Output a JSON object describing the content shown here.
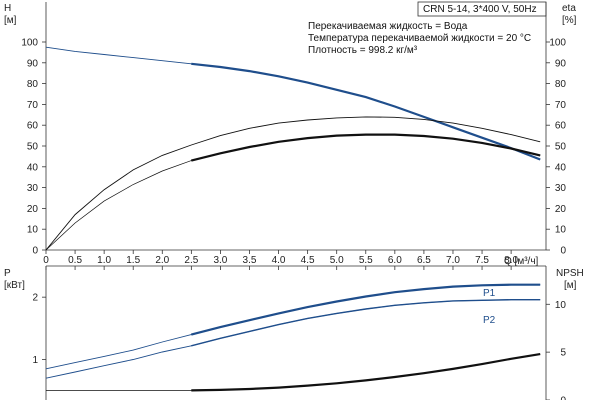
{
  "chart_data": [
    {
      "type": "line",
      "header_box": "CRN 5-14, 3*400 V, 50Hz",
      "info_lines": [
        "Перекачиваемая жидкость = Вода",
        "Температура перекачиваемой жидкости = 20 °C",
        "Плотность = 998.2 кг/м³"
      ],
      "y_label_left": {
        "name": "H",
        "unit": "[м]"
      },
      "y_label_right": {
        "name": "eta",
        "unit": "[%]"
      },
      "x_label": "Q [м³/ч]",
      "x_ticks": [
        "0",
        "0.5",
        "1.0",
        "1.5",
        "2.0",
        "2.5",
        "3.0",
        "3.5",
        "4.0",
        "4.5",
        "5.0",
        "5.5",
        "6.0",
        "6.5",
        "7.0",
        "7.5",
        "8.0"
      ],
      "y_ticks_left": [
        "0",
        "10",
        "20",
        "30",
        "40",
        "50",
        "60",
        "70",
        "80",
        "90",
        "100"
      ],
      "y_ticks_right": [
        "0",
        "10",
        "20",
        "30",
        "40",
        "50",
        "60",
        "70",
        "80",
        "90",
        "100"
      ],
      "xlim": [
        0,
        8.6
      ],
      "ylim": [
        0,
        100
      ],
      "grid": false,
      "series": [
        {
          "role": "head",
          "color": "#1f4e8c",
          "points": [
            [
              0,
              97.5
            ],
            [
              0.5,
              95.5
            ],
            [
              1.0,
              94.0
            ],
            [
              1.5,
              92.5
            ],
            [
              2.0,
              91.0
            ],
            [
              2.5,
              89.5
            ],
            [
              3.0,
              88.0
            ],
            [
              3.5,
              86.0
            ],
            [
              4.0,
              83.5
            ],
            [
              4.5,
              80.5
            ],
            [
              5.0,
              77.0
            ],
            [
              5.5,
              73.5
            ],
            [
              6.0,
              69.0
            ],
            [
              6.5,
              64.0
            ],
            [
              7.0,
              59.0
            ],
            [
              7.5,
              54.0
            ],
            [
              8.0,
              49.0
            ],
            [
              8.5,
              43.5
            ]
          ]
        },
        {
          "role": "efficiency",
          "color": "#111111",
          "points": [
            [
              0,
              0
            ],
            [
              0.5,
              17
            ],
            [
              1.0,
              29
            ],
            [
              1.5,
              38.5
            ],
            [
              2.0,
              45.5
            ],
            [
              2.5,
              50.5
            ],
            [
              3.0,
              55
            ],
            [
              3.5,
              58.5
            ],
            [
              4.0,
              61
            ],
            [
              4.5,
              62.5
            ],
            [
              5.0,
              63.5
            ],
            [
              5.5,
              64
            ],
            [
              6.0,
              63.8
            ],
            [
              6.5,
              62.8
            ],
            [
              7.0,
              61
            ],
            [
              7.5,
              58.5
            ],
            [
              8.0,
              55.5
            ],
            [
              8.5,
              52
            ]
          ]
        },
        {
          "role": "efficiency-operating",
          "color": "#111111",
          "points": [
            [
              0,
              0
            ],
            [
              0.5,
              13
            ],
            [
              1.0,
              23.5
            ],
            [
              1.5,
              31.5
            ],
            [
              2.0,
              38
            ],
            [
              2.5,
              43
            ],
            [
              3.0,
              46.5
            ],
            [
              3.5,
              49.5
            ],
            [
              4.0,
              52
            ],
            [
              4.5,
              53.8
            ],
            [
              5.0,
              55
            ],
            [
              5.5,
              55.5
            ],
            [
              6.0,
              55.5
            ],
            [
              6.5,
              54.8
            ],
            [
              7.0,
              53.5
            ],
            [
              7.5,
              51.5
            ],
            [
              8.0,
              48.8
            ],
            [
              8.5,
              45.5
            ]
          ]
        }
      ]
    },
    {
      "type": "line",
      "y_label_left": {
        "name": "P",
        "unit": "[кВт]"
      },
      "y_label_right": {
        "name": "NPSH",
        "unit": "[м]"
      },
      "y_ticks_left": [
        "1",
        "2"
      ],
      "y_ticks_right": [
        "0",
        "5",
        "10"
      ],
      "xlim": [
        0,
        8.6
      ],
      "ylim_left": [
        0.35,
        2.5
      ],
      "ylim_right": [
        0,
        14
      ],
      "grid": false,
      "series": [
        {
          "name": "P1",
          "color": "#1f4e8c",
          "points": [
            [
              0,
              0.85
            ],
            [
              0.5,
              0.95
            ],
            [
              1.0,
              1.05
            ],
            [
              1.5,
              1.15
            ],
            [
              2.0,
              1.28
            ],
            [
              2.5,
              1.4
            ],
            [
              3.0,
              1.52
            ],
            [
              3.5,
              1.63
            ],
            [
              4.0,
              1.74
            ],
            [
              4.5,
              1.84
            ],
            [
              5.0,
              1.93
            ],
            [
              5.5,
              2.01
            ],
            [
              6.0,
              2.08
            ],
            [
              6.5,
              2.13
            ],
            [
              7.0,
              2.17
            ],
            [
              7.5,
              2.19
            ],
            [
              8.0,
              2.2
            ],
            [
              8.5,
              2.2
            ]
          ]
        },
        {
          "name": "P2",
          "color": "#1f4e8c",
          "points": [
            [
              0,
              0.7
            ],
            [
              0.5,
              0.8
            ],
            [
              1.0,
              0.9
            ],
            [
              1.5,
              1.0
            ],
            [
              2.0,
              1.12
            ],
            [
              2.5,
              1.22
            ],
            [
              3.0,
              1.34
            ],
            [
              3.5,
              1.45
            ],
            [
              4.0,
              1.56
            ],
            [
              4.5,
              1.66
            ],
            [
              5.0,
              1.74
            ],
            [
              5.5,
              1.81
            ],
            [
              6.0,
              1.87
            ],
            [
              6.5,
              1.91
            ],
            [
              7.0,
              1.94
            ],
            [
              7.5,
              1.95
            ],
            [
              8.0,
              1.96
            ],
            [
              8.5,
              1.96
            ]
          ]
        },
        {
          "role": "npsh",
          "color": "#111111",
          "axis": "right",
          "points": [
            [
              0,
              1.0
            ],
            [
              0.5,
              1.0
            ],
            [
              1.0,
              1.0
            ],
            [
              1.5,
              1.0
            ],
            [
              2.0,
              1.0
            ],
            [
              2.5,
              1.0
            ],
            [
              3.0,
              1.05
            ],
            [
              3.5,
              1.15
            ],
            [
              4.0,
              1.3
            ],
            [
              4.5,
              1.5
            ],
            [
              5.0,
              1.75
            ],
            [
              5.5,
              2.05
            ],
            [
              6.0,
              2.4
            ],
            [
              6.5,
              2.8
            ],
            [
              7.0,
              3.25
            ],
            [
              7.5,
              3.75
            ],
            [
              8.0,
              4.3
            ],
            [
              8.5,
              4.8
            ]
          ]
        }
      ]
    }
  ]
}
